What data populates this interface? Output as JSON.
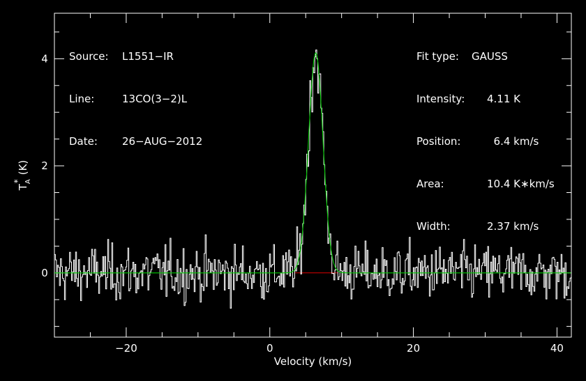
{
  "chart_data": {
    "type": "line",
    "xlabel": "Velocity (km/s)",
    "ylabel_main": "T",
    "ylabel_sub": "A",
    "ylabel_sup": "*",
    "ylabel_unit": "(K)",
    "xlim": [
      -30,
      42
    ],
    "ylim": [
      -1.2,
      4.85
    ],
    "xticks": [
      -20,
      0,
      20,
      40
    ],
    "xtick_labels": [
      "−20",
      "0",
      "20",
      "40"
    ],
    "yticks": [
      0,
      2,
      4
    ],
    "ytick_labels": [
      "0",
      "2",
      "4"
    ],
    "fit": {
      "type": "GAUSS",
      "peak_K": 4.11,
      "center_kms": 6.4,
      "width_fwhm_kms": 2.37,
      "area_K_kms": 10.4
    },
    "baseline_window_kms": [
      3.5,
      9.5
    ],
    "noise_rms_K": 0.27,
    "series": [
      {
        "color": "#ffffff",
        "style": "histogram"
      },
      {
        "color": "#00cc00",
        "style": "line"
      },
      {
        "color": "#dd0000",
        "style": "line"
      }
    ]
  },
  "info_left": [
    {
      "label": "Source:",
      "value": "L1551−IR"
    },
    {
      "label": "Line:",
      "value": "13CO(3−2)L"
    },
    {
      "label": "Date:",
      "value": "26−AUG−2012"
    }
  ],
  "info_right": [
    {
      "label": "Fit type:",
      "value": "GAUSS"
    },
    {
      "label": "Intensity:",
      "value": "4.11 K"
    },
    {
      "label": "Position:",
      "value": "  6.4 km/s"
    },
    {
      "label": "Area:",
      "value": "10.4 K∗km/s"
    },
    {
      "label": "Width:",
      "value": "2.37 km/s"
    }
  ],
  "colors": {
    "background": "#000000",
    "axes": "#ffffff",
    "spectrum": "#ffffff",
    "fit": "#00cc00",
    "baseline": "#dd0000"
  }
}
